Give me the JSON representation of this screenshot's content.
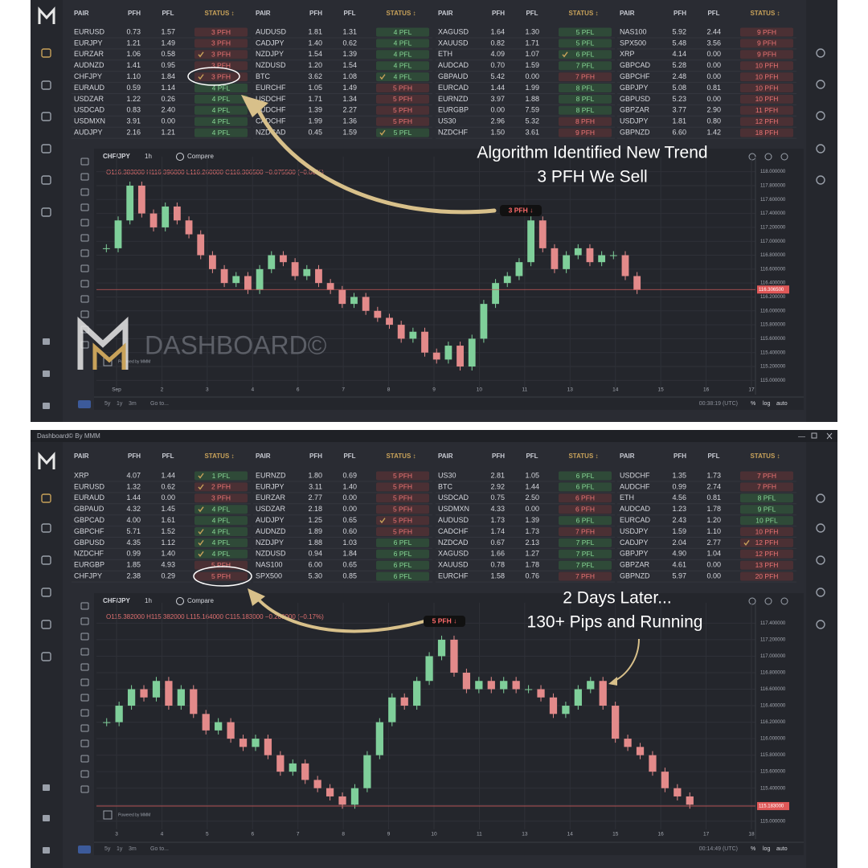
{
  "window_title": "Dashboard© By MMM",
  "headers": [
    "PAIR",
    "PFH",
    "PFL",
    "STATUS ↕"
  ],
  "toolbar": {
    "compare": "Compare",
    "ranges": [
      "5y",
      "1y",
      "3m"
    ],
    "goto": "Go to...",
    "modes": [
      "%",
      "log",
      "auto"
    ],
    "powered": "Powered by MMM",
    "watermark": "DASHBOARD©"
  },
  "panels": [
    {
      "groups": [
        [
          [
            "EURUSD",
            "0.73",
            "1.57",
            "3 PFH",
            false
          ],
          [
            "EURJPY",
            "1.21",
            "1.49",
            "3 PFH",
            false
          ],
          [
            "EURZAR",
            "1.06",
            "0.58",
            "3 PFH",
            true
          ],
          [
            "AUDNZD",
            "1.41",
            "0.95",
            "3 PFH",
            false
          ],
          [
            "CHFJPY",
            "1.10",
            "1.84",
            "3 PFH",
            true
          ],
          [
            "EURAUD",
            "0.59",
            "1.14",
            "4 PFL",
            false
          ],
          [
            "USDZAR",
            "1.22",
            "0.26",
            "4 PFL",
            false
          ],
          [
            "USDCAD",
            "0.83",
            "2.40",
            "4 PFL",
            false
          ],
          [
            "USDMXN",
            "3.91",
            "0.00",
            "4 PFL",
            false
          ],
          [
            "AUDJPY",
            "2.16",
            "1.21",
            "4 PFL",
            false
          ]
        ],
        [
          [
            "AUDUSD",
            "1.81",
            "1.31",
            "4 PFL",
            false
          ],
          [
            "CADJPY",
            "1.40",
            "0.62",
            "4 PFL",
            false
          ],
          [
            "NZDJPY",
            "1.54",
            "1.39",
            "4 PFL",
            false
          ],
          [
            "NZDUSD",
            "1.20",
            "1.54",
            "4 PFL",
            false
          ],
          [
            "BTC",
            "3.62",
            "1.08",
            "4 PFL",
            true
          ],
          [
            "EURCHF",
            "1.05",
            "1.49",
            "5 PFH",
            false
          ],
          [
            "USDCHF",
            "1.71",
            "1.34",
            "5 PFH",
            false
          ],
          [
            "AUDCHF",
            "1.39",
            "2.27",
            "5 PFH",
            false
          ],
          [
            "CADCHF",
            "1.99",
            "1.36",
            "5 PFH",
            false
          ],
          [
            "NZDCAD",
            "0.45",
            "1.59",
            "5 PFL",
            true
          ]
        ],
        [
          [
            "XAGUSD",
            "1.64",
            "1.30",
            "5 PFL",
            false
          ],
          [
            "XAUUSD",
            "0.82",
            "1.71",
            "5 PFL",
            false
          ],
          [
            "ETH",
            "4.09",
            "1.07",
            "6 PFL",
            true
          ],
          [
            "AUDCAD",
            "0.70",
            "1.59",
            "7 PFL",
            false
          ],
          [
            "GBPAUD",
            "5.42",
            "0.00",
            "7 PFH",
            false
          ],
          [
            "EURCAD",
            "1.44",
            "1.99",
            "8 PFL",
            false
          ],
          [
            "EURNZD",
            "3.97",
            "1.88",
            "8 PFL",
            false
          ],
          [
            "EURGBP",
            "0.00",
            "7.59",
            "8 PFL",
            false
          ],
          [
            "US30",
            "2.96",
            "5.32",
            "8 PFH",
            false
          ],
          [
            "NZDCHF",
            "1.50",
            "3.61",
            "9 PFH",
            false
          ]
        ],
        [
          [
            "NAS100",
            "5.92",
            "2.44",
            "9 PFH",
            false
          ],
          [
            "SPX500",
            "5.48",
            "3.56",
            "9 PFH",
            false
          ],
          [
            "XRP",
            "4.14",
            "0.00",
            "9 PFH",
            false
          ],
          [
            "GBPCAD",
            "5.28",
            "0.00",
            "10 PFH",
            false
          ],
          [
            "GBPCHF",
            "2.48",
            "0.00",
            "10 PFH",
            false
          ],
          [
            "GBPJPY",
            "5.08",
            "0.81",
            "10 PFH",
            false
          ],
          [
            "GBPUSD",
            "5.23",
            "0.00",
            "10 PFH",
            false
          ],
          [
            "GBPZAR",
            "3.77",
            "2.90",
            "11 PFH",
            false
          ],
          [
            "USDJPY",
            "1.81",
            "0.80",
            "12 PFH",
            false
          ],
          [
            "GBPNZD",
            "6.60",
            "1.42",
            "18 PFH",
            false
          ]
        ]
      ],
      "chart": {
        "type": "candlestick",
        "symbol": "CHF/JPY",
        "interval": "1h",
        "ohlc": "O116.383000  H116.396000  L116.260000  C116.306500  −0.075500 (−0.06%)",
        "ylim": [
          114.9,
          118.1
        ],
        "yticks": [
          {
            "value": 118,
            "label": "118.000000"
          },
          {
            "value": 117.8,
            "label": "117.800000"
          },
          {
            "value": 117.6,
            "label": "117.600000"
          },
          {
            "value": 117.4,
            "label": "117.400000"
          },
          {
            "value": 117.2,
            "label": "117.200000"
          },
          {
            "value": 117,
            "label": "117.000000"
          },
          {
            "value": 116.8,
            "label": "116.800000"
          },
          {
            "value": 116.6,
            "label": "116.600000"
          },
          {
            "value": 116.4,
            "label": "116.400000"
          },
          {
            "value": 116.2,
            "label": "116.200000"
          },
          {
            "value": 116,
            "label": "116.000000"
          },
          {
            "value": 115.8,
            "label": "115.800000"
          },
          {
            "value": 115.6,
            "label": "115.600000"
          },
          {
            "value": 115.4,
            "label": "115.400000"
          },
          {
            "value": 115.2,
            "label": "115.200000"
          },
          {
            "value": 115,
            "label": "115.000000"
          }
        ],
        "xticks": [
          "Sep",
          "2",
          "3",
          "4",
          "6",
          "7",
          "8",
          "9",
          "10",
          "11",
          "13",
          "14",
          "15",
          "16",
          "17"
        ],
        "close": [
          116.9,
          117.3,
          117.8,
          117.4,
          117.2,
          117.5,
          117.3,
          117.1,
          116.8,
          116.6,
          116.4,
          116.5,
          116.3,
          116.6,
          116.8,
          116.7,
          116.5,
          116.6,
          116.4,
          116.3,
          116.1,
          116.2,
          116.0,
          115.9,
          115.8,
          115.6,
          115.7,
          115.4,
          115.3,
          115.5,
          115.2,
          115.6,
          116.1,
          116.4,
          116.5,
          116.7,
          117.3,
          116.9,
          116.6,
          116.8,
          116.9,
          116.7,
          116.8,
          116.8,
          116.5,
          116.3
        ],
        "last_price": {
          "value": 116.3065,
          "label": "116.306500"
        },
        "time": "00:38:19 (UTC)"
      },
      "annotations": [
        "Algorithm Identified New Trend",
        "3 PFH We Sell",
        "3 PFH ↓"
      ]
    },
    {
      "groups": [
        [
          [
            "XRP",
            "4.07",
            "1.44",
            "1 PFL",
            true
          ],
          [
            "EURUSD",
            "1.32",
            "0.62",
            "2 PFH",
            true
          ],
          [
            "EURAUD",
            "1.44",
            "0.00",
            "3 PFH",
            false
          ],
          [
            "GBPAUD",
            "4.32",
            "1.45",
            "4 PFL",
            true
          ],
          [
            "GBPCAD",
            "4.00",
            "1.61",
            "4 PFL",
            false
          ],
          [
            "GBPCHF",
            "5.71",
            "1.52",
            "4 PFL",
            true
          ],
          [
            "GBPUSD",
            "4.35",
            "1.12",
            "4 PFL",
            true
          ],
          [
            "NZDCHF",
            "0.99",
            "1.40",
            "4 PFL",
            true
          ],
          [
            "EURGBP",
            "1.85",
            "4.93",
            "5 PFH",
            false
          ],
          [
            "CHFJPY",
            "2.38",
            "0.29",
            "5 PFH",
            false
          ]
        ],
        [
          [
            "EURNZD",
            "1.80",
            "0.69",
            "5 PFH",
            false
          ],
          [
            "EURJPY",
            "3.11",
            "1.40",
            "5 PFH",
            false
          ],
          [
            "EURZAR",
            "2.77",
            "0.00",
            "5 PFH",
            false
          ],
          [
            "USDZAR",
            "2.18",
            "0.00",
            "5 PFH",
            false
          ],
          [
            "AUDJPY",
            "1.25",
            "0.65",
            "5 PFH",
            true
          ],
          [
            "AUDNZD",
            "1.89",
            "0.60",
            "5 PFH",
            false
          ],
          [
            "NZDJPY",
            "1.88",
            "1.03",
            "6 PFL",
            false
          ],
          [
            "NZDUSD",
            "0.94",
            "1.84",
            "6 PFL",
            false
          ],
          [
            "NAS100",
            "6.00",
            "0.65",
            "6 PFL",
            false
          ],
          [
            "SPX500",
            "5.30",
            "0.85",
            "6 PFL",
            false
          ]
        ],
        [
          [
            "US30",
            "2.81",
            "1.05",
            "6 PFL",
            false
          ],
          [
            "BTC",
            "2.92",
            "1.44",
            "6 PFL",
            false
          ],
          [
            "USDCAD",
            "0.75",
            "2.50",
            "6 PFH",
            false
          ],
          [
            "USDMXN",
            "4.33",
            "0.00",
            "6 PFH",
            false
          ],
          [
            "AUDUSD",
            "1.73",
            "1.39",
            "6 PFL",
            false
          ],
          [
            "CADCHF",
            "1.74",
            "1.73",
            "7 PFH",
            false
          ],
          [
            "NZDCAD",
            "0.67",
            "2.13",
            "7 PFL",
            false
          ],
          [
            "XAGUSD",
            "1.66",
            "1.27",
            "7 PFL",
            false
          ],
          [
            "XAUUSD",
            "0.78",
            "1.78",
            "7 PFL",
            false
          ],
          [
            "EURCHF",
            "1.58",
            "0.76",
            "7 PFH",
            false
          ]
        ],
        [
          [
            "USDCHF",
            "1.35",
            "1.73",
            "7 PFH",
            false
          ],
          [
            "AUDCHF",
            "0.99",
            "2.74",
            "7 PFH",
            false
          ],
          [
            "ETH",
            "4.56",
            "0.81",
            "8 PFL",
            false
          ],
          [
            "AUDCAD",
            "1.23",
            "1.78",
            "9 PFL",
            false
          ],
          [
            "EURCAD",
            "2.43",
            "1.20",
            "10 PFL",
            false
          ],
          [
            "USDJPY",
            "1.59",
            "1.10",
            "10 PFH",
            false
          ],
          [
            "CADJPY",
            "2.04",
            "2.77",
            "12 PFH",
            true
          ],
          [
            "GBPJPY",
            "4.90",
            "1.04",
            "12 PFH",
            false
          ],
          [
            "GBPZAR",
            "4.61",
            "0.00",
            "13 PFH",
            false
          ],
          [
            "GBPNZD",
            "5.97",
            "0.00",
            "20 PFH",
            false
          ]
        ]
      ],
      "chart": {
        "type": "candlestick",
        "symbol": "CHF/JPY",
        "interval": "1h",
        "ohlc": "O115.382000  H115.382000  L115.164000  C115.183000  −0.200000 (−0.17%)",
        "ylim": [
          114.9,
          117.55
        ],
        "yticks": [
          {
            "value": 117.4,
            "label": "117.400000"
          },
          {
            "value": 117.2,
            "label": "117.200000"
          },
          {
            "value": 117,
            "label": "117.000000"
          },
          {
            "value": 116.8,
            "label": "116.800000"
          },
          {
            "value": 116.6,
            "label": "116.600000"
          },
          {
            "value": 116.4,
            "label": "116.400000"
          },
          {
            "value": 116.2,
            "label": "116.200000"
          },
          {
            "value": 116,
            "label": "116.000000"
          },
          {
            "value": 115.8,
            "label": "115.800000"
          },
          {
            "value": 115.6,
            "label": "115.600000"
          },
          {
            "value": 115.4,
            "label": "115.400000"
          },
          {
            "value": 115.2,
            "label": "115.200000"
          },
          {
            "value": 115,
            "label": "115.000000"
          }
        ],
        "xticks": [
          "3",
          "4",
          "5",
          "6",
          "7",
          "8",
          "9",
          "10",
          "11",
          "13",
          "14",
          "15",
          "16",
          "17",
          "18"
        ],
        "close": [
          116.2,
          116.4,
          116.6,
          116.5,
          116.7,
          116.4,
          116.6,
          116.3,
          116.1,
          116.2,
          116.0,
          115.9,
          116.0,
          115.8,
          115.6,
          115.7,
          115.5,
          115.4,
          115.3,
          115.2,
          115.4,
          115.8,
          116.2,
          116.5,
          116.4,
          116.7,
          117.0,
          117.2,
          116.8,
          116.6,
          116.7,
          116.6,
          116.7,
          116.6,
          116.6,
          116.5,
          116.3,
          116.4,
          116.6,
          116.7,
          116.4,
          116.0,
          115.9,
          115.8,
          115.6,
          115.4,
          115.3,
          115.2
        ],
        "last_price": {
          "value": 115.183,
          "label": "115.183000"
        },
        "time": "00:14:49 (UTC)"
      },
      "annotations": [
        "2 Days Later...",
        "130+ Pips and Running",
        "5 PFH ↓"
      ]
    }
  ]
}
